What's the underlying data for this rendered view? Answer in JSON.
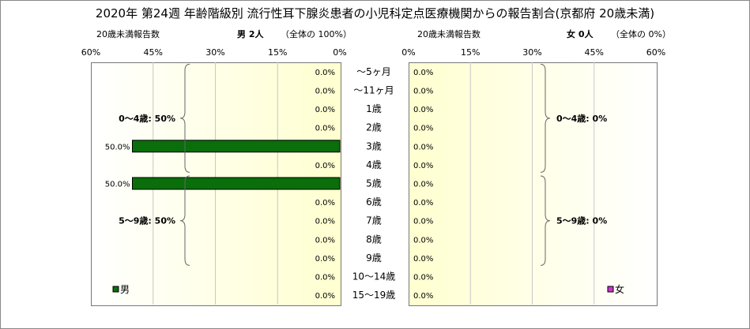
{
  "title": "2020年 第24週 年齢階級別 流行性耳下腺炎患者の小児科定点医療機関からの報告割合(京都府 20歳未満)",
  "male_header": {
    "left_label": "20歳未満報告数",
    "summary": "男  2人",
    "share": "（全体の  100%）"
  },
  "female_header": {
    "left_label": "20歳未満報告数",
    "summary": "女  0人",
    "share": "（全体の  0%）"
  },
  "chart_data": {
    "type": "bar",
    "orientation": "horizontal-butterfly",
    "categories": [
      "～5ヶ月",
      "～11ヶ月",
      "1歳",
      "2歳",
      "3歳",
      "4歳",
      "5歳",
      "6歳",
      "7歳",
      "8歳",
      "9歳",
      "10～14歳",
      "15～19歳"
    ],
    "x_ticks_male": [
      "60%",
      "45%",
      "30%",
      "15%",
      "0%"
    ],
    "x_ticks_female": [
      "0%",
      "15%",
      "30%",
      "45%",
      "60%"
    ],
    "xlim": [
      0,
      60
    ],
    "grid": true,
    "series": [
      {
        "name": "男",
        "color": "#0a6e0a",
        "values": [
          0,
          0,
          0,
          0,
          50,
          0,
          50,
          0,
          0,
          0,
          0,
          0,
          0
        ],
        "labels": [
          "0.0%",
          "0.0%",
          "0.0%",
          "0.0%",
          "50.0%",
          "0.0%",
          "50.0%",
          "0.0%",
          "0.0%",
          "0.0%",
          "0.0%",
          "0.0%",
          "0.0%"
        ]
      },
      {
        "name": "女",
        "color": "#cc33cc",
        "values": [
          0,
          0,
          0,
          0,
          0,
          0,
          0,
          0,
          0,
          0,
          0,
          0,
          0
        ],
        "labels": [
          "0.0%",
          "0.0%",
          "0.0%",
          "0.0%",
          "0.0%",
          "0.0%",
          "0.0%",
          "0.0%",
          "0.0%",
          "0.0%",
          "0.0%",
          "0.0%",
          "0.0%"
        ]
      }
    ],
    "groups": {
      "male": [
        {
          "label": "0～4歳: 50%",
          "from": 0,
          "to": 5
        },
        {
          "label": "5～9歳: 50%",
          "from": 6,
          "to": 10
        }
      ],
      "female": [
        {
          "label": "0～4歳: 0%",
          "from": 0,
          "to": 5
        },
        {
          "label": "5～9歳: 0%",
          "from": 6,
          "to": 10
        }
      ]
    },
    "legend": {
      "male": "男",
      "female": "女",
      "placement": "bottom-left / bottom-right"
    }
  }
}
